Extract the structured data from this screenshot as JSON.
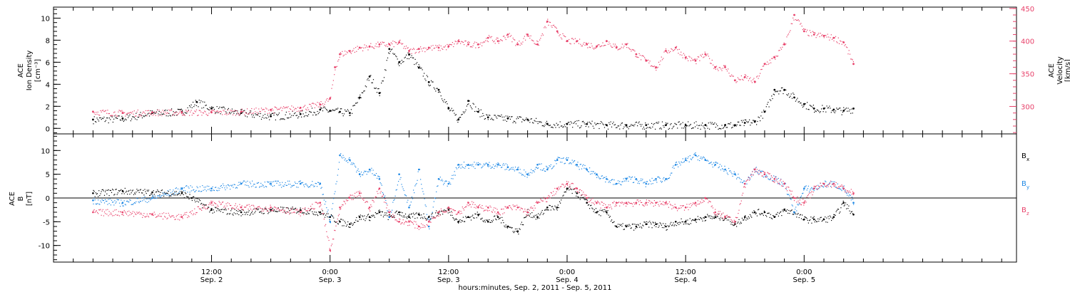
{
  "chart_data": [
    {
      "type": "scatter",
      "panel": "top",
      "y_axes": {
        "left": {
          "label": [
            "ACE",
            "Ion Density",
            "[cm⁻³]"
          ],
          "ticks": [
            "0",
            "2",
            "4",
            "6",
            "8",
            "10"
          ],
          "tick_values": [
            0,
            2,
            4,
            6,
            8,
            10
          ],
          "ylim": [
            -0.5,
            11
          ],
          "color": "#000000"
        },
        "right": {
          "label": [
            "ACE",
            "Velocity",
            "[km/s]"
          ],
          "ticks": [
            "300",
            "350",
            "400",
            "450"
          ],
          "tick_values": [
            300,
            350,
            400,
            450
          ],
          "ylim": [
            258,
            452
          ],
          "color": "#e8416a"
        }
      },
      "series": [
        {
          "axis": "left",
          "color": "#000000",
          "x_hours": [
            0,
            3,
            6,
            9,
            10.5,
            12,
            15,
            18,
            21,
            23,
            24,
            25,
            26,
            27,
            28,
            29,
            30,
            31,
            32,
            33,
            34,
            35,
            36,
            37,
            38,
            39,
            40,
            42,
            44,
            46,
            48,
            50,
            52,
            54,
            56,
            58,
            60,
            62,
            64,
            65,
            66,
            67,
            68,
            69,
            70,
            71,
            72,
            73,
            74,
            75,
            76,
            77
          ],
          "values": [
            0.8,
            0.9,
            1.4,
            1.5,
            2.4,
            1.8,
            1.4,
            1.1,
            1.3,
            1.7,
            1.6,
            1.5,
            1.4,
            2.8,
            4.7,
            3.2,
            7.2,
            6.0,
            6.7,
            5.5,
            4.2,
            3.5,
            1.8,
            0.8,
            2.5,
            1.5,
            1.0,
            0.9,
            0.8,
            0.4,
            0.4,
            0.4,
            0.3,
            0.3,
            0.3,
            0.3,
            0.3,
            0.3,
            0.3,
            0.3,
            0.5,
            0.6,
            1.5,
            3.5,
            3.5,
            2.8,
            2.2,
            1.8,
            1.8,
            1.7,
            1.6,
            1.8
          ]
        },
        {
          "axis": "right",
          "color": "#e8416a",
          "x_hours": [
            0,
            3,
            6,
            9,
            12,
            15,
            18,
            21,
            23,
            24,
            24.5,
            25,
            26,
            27,
            28,
            29,
            30,
            31,
            32,
            33,
            34,
            35,
            36,
            37,
            38,
            39,
            40,
            41,
            42,
            43,
            44,
            45,
            46,
            47,
            48,
            49,
            50,
            51,
            52,
            53,
            54,
            55,
            56,
            57,
            58,
            59,
            60,
            61,
            62,
            63,
            64,
            65,
            66,
            67,
            68,
            69,
            70,
            71,
            72,
            73,
            74,
            75,
            76,
            77
          ],
          "values": [
            292,
            290,
            291,
            291,
            291,
            292,
            295,
            298,
            303,
            312,
            360,
            380,
            385,
            390,
            392,
            395,
            395,
            398,
            385,
            388,
            390,
            390,
            392,
            400,
            395,
            395,
            405,
            400,
            410,
            395,
            410,
            395,
            430,
            415,
            400,
            400,
            395,
            392,
            400,
            390,
            395,
            380,
            370,
            360,
            385,
            390,
            375,
            370,
            380,
            360,
            360,
            340,
            345,
            338,
            365,
            375,
            395,
            440,
            415,
            410,
            408,
            405,
            398,
            365
          ]
        }
      ]
    },
    {
      "type": "line",
      "panel": "bottom",
      "ylabel": [
        "ACE",
        "B",
        "[nT]"
      ],
      "yticks": [
        "-10",
        "-5",
        "0",
        "5",
        "10"
      ],
      "ytick_values": [
        -10,
        -5,
        0,
        5,
        10
      ],
      "ylim": [
        -13.5,
        13.5
      ],
      "x_tick_labels": [
        {
          "time": "12:00",
          "date": "Sep. 2",
          "hour": 12
        },
        {
          "time": "0:00",
          "date": "Sep. 3",
          "hour": 24
        },
        {
          "time": "12:00",
          "date": "Sep. 3",
          "hour": 36
        },
        {
          "time": "0:00",
          "date": "Sep. 4",
          "hour": 48
        },
        {
          "time": "12:00",
          "date": "Sep. 4",
          "hour": 60
        },
        {
          "time": "0:00",
          "date": "Sep. 5",
          "hour": 72
        }
      ],
      "xlim_hours": [
        -4,
        93.5
      ],
      "xlabel": "hours:minutes, Sep.  2, 2011 - Sep.  5, 2011",
      "legend": [
        {
          "label": "B",
          "sub": "x",
          "color": "#000000"
        },
        {
          "label": "B",
          "sub": "y",
          "color": "#1e88e5"
        },
        {
          "label": "B",
          "sub": "z",
          "color": "#e8416a"
        }
      ],
      "series": [
        {
          "name": "Bx",
          "color": "#000000",
          "x_hours": [
            0,
            3,
            6,
            9,
            10,
            12,
            15,
            18,
            21,
            23,
            24,
            25,
            26,
            27,
            28,
            29,
            30,
            31,
            32,
            33,
            34,
            35,
            36,
            37,
            38,
            39,
            40,
            41,
            42,
            43,
            44,
            45,
            46,
            47,
            48,
            49,
            50,
            51,
            52,
            53,
            54,
            55,
            56,
            57,
            58,
            59,
            60,
            61,
            62,
            63,
            64,
            65,
            66,
            67,
            68,
            69,
            70,
            71,
            72,
            73,
            74,
            75,
            76,
            77
          ],
          "values": [
            1,
            1.5,
            1.2,
            1,
            0,
            -2.5,
            -3,
            -2.5,
            -2.5,
            -3,
            -4,
            -5,
            -5.5,
            -4,
            -4,
            -3,
            -4,
            -3,
            -4,
            -3.5,
            -4,
            -3,
            -2.5,
            -5,
            -4,
            -3.5,
            -5,
            -4,
            -6,
            -7,
            -3,
            -4,
            -2,
            -2,
            2,
            1,
            -1,
            -3,
            -3,
            -6,
            -6,
            -6,
            -5.5,
            -5.5,
            -6,
            -5,
            -5,
            -4.5,
            -4,
            -4,
            -4,
            -5.5,
            -4,
            -3,
            -3,
            -4,
            -2.5,
            -3,
            -4.5,
            -4.5,
            -4.5,
            -4,
            -1,
            -3.5
          ]
        },
        {
          "name": "By",
          "color": "#1e88e5",
          "x_hours": [
            0,
            3,
            6,
            9,
            12,
            15,
            18,
            21,
            23,
            24,
            25,
            26,
            27,
            28,
            29,
            30,
            31,
            32,
            33,
            34,
            35,
            36,
            37,
            38,
            39,
            40,
            41,
            42,
            43,
            44,
            45,
            46,
            47,
            48,
            49,
            50,
            51,
            52,
            53,
            54,
            55,
            56,
            57,
            58,
            59,
            60,
            61,
            62,
            63,
            64,
            65,
            66,
            67,
            68,
            69,
            70,
            71,
            72,
            73,
            74,
            75,
            76,
            77
          ],
          "values": [
            -0.5,
            -1,
            0,
            2,
            2,
            3,
            3,
            3,
            3,
            -5,
            9,
            8,
            5,
            6,
            4,
            -4,
            5,
            -2,
            6,
            -6,
            4,
            3,
            7,
            7,
            7,
            7,
            7,
            6.5,
            6,
            5,
            7,
            6,
            8,
            8,
            7,
            6,
            5,
            4,
            3,
            4,
            4,
            3,
            4,
            4,
            7,
            8,
            9,
            8,
            7,
            6,
            5,
            3,
            6,
            5,
            4,
            3,
            -3,
            2,
            2,
            3,
            3,
            2,
            -1
          ]
        },
        {
          "name": "Bz",
          "color": "#e8416a",
          "x_hours": [
            0,
            3,
            6,
            9,
            12,
            15,
            18,
            21,
            23,
            24,
            25,
            26,
            27,
            28,
            29,
            30,
            31,
            32,
            33,
            34,
            35,
            36,
            37,
            38,
            39,
            40,
            41,
            42,
            43,
            44,
            45,
            46,
            47,
            48,
            49,
            50,
            51,
            52,
            53,
            54,
            55,
            56,
            57,
            58,
            59,
            60,
            61,
            62,
            63,
            64,
            65,
            66,
            67,
            68,
            69,
            70,
            71,
            72,
            73,
            74,
            75,
            76,
            77
          ],
          "values": [
            -3,
            -3,
            -3.5,
            -4,
            -1,
            -2,
            -2,
            -3,
            -1,
            -11,
            -2,
            0,
            1,
            -2,
            2,
            -3,
            -5,
            -5,
            -6,
            -5,
            -3,
            -2,
            -3,
            -1,
            -2,
            -2,
            -3,
            -2,
            -2,
            -3,
            -1,
            0,
            2,
            3,
            2,
            0,
            -1,
            -2,
            -1,
            -1,
            -1,
            -1,
            -1,
            -1,
            -2,
            -2,
            -1,
            0,
            -3,
            -4,
            -5,
            3,
            6,
            5,
            4,
            3,
            0,
            -1,
            2,
            3,
            3,
            2,
            1
          ]
        }
      ]
    }
  ]
}
